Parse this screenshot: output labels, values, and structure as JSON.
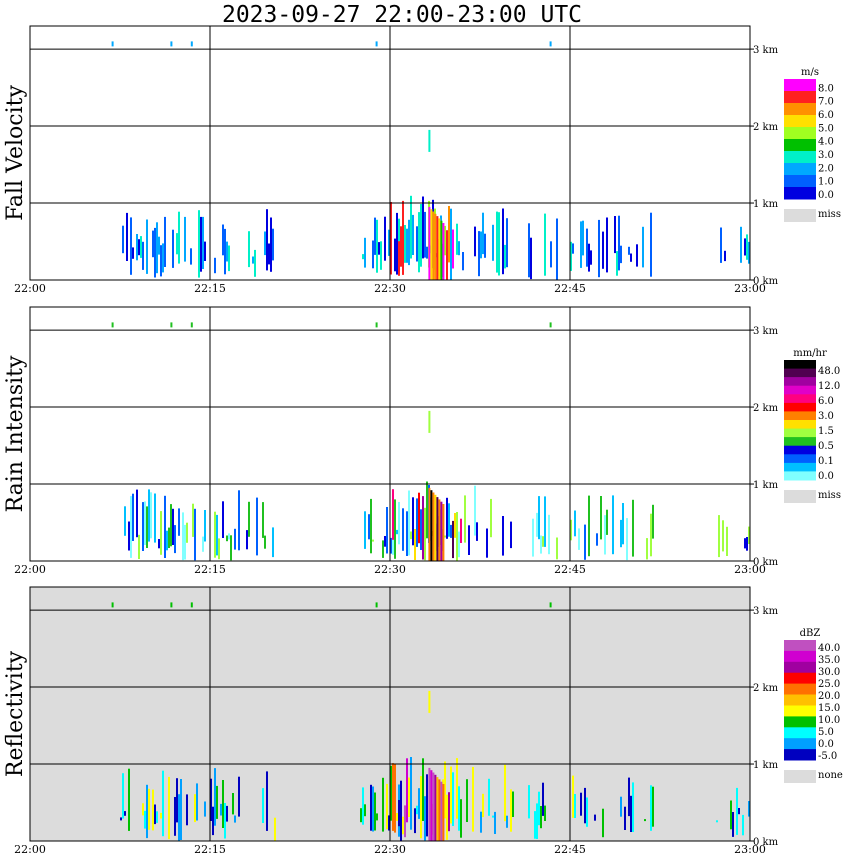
{
  "title": "2023-09-27  22:00-23:00 UTC",
  "chart_data": [
    {
      "type": "heatmap",
      "ylabel": "Fall Velocity",
      "x_ticks": [
        "22:00",
        "22:15",
        "22:30",
        "22:45",
        "23:00"
      ],
      "x_range_minutes": [
        0,
        60
      ],
      "y_ticks": [
        "0 km",
        "1 km",
        "2 km",
        "3 km"
      ],
      "y_range_km": [
        0,
        3.3
      ],
      "grid": true,
      "background": "white",
      "colorbar": {
        "unit": "m/s",
        "labels": [
          "8.0",
          "7.0",
          "6.0",
          "5.0",
          "4.0",
          "3.0",
          "2.0",
          "1.0",
          "0.0"
        ],
        "colors": [
          "#ff00ff",
          "#ff2020",
          "#ff9000",
          "#ffe000",
          "#a0ff20",
          "#00c000",
          "#00f0c8",
          "#00a8ff",
          "#0060ff",
          "#0000e0"
        ],
        "missing_label": "miss",
        "missing_color": "#dcdcdc"
      }
    },
    {
      "type": "heatmap",
      "ylabel": "Rain Intensity",
      "x_ticks": [
        "22:00",
        "22:15",
        "22:30",
        "22:45",
        "23:00"
      ],
      "x_range_minutes": [
        0,
        60
      ],
      "y_ticks": [
        "0 km",
        "1 km",
        "2 km",
        "3 km"
      ],
      "y_range_km": [
        0,
        3.3
      ],
      "grid": true,
      "background": "white",
      "colorbar": {
        "unit": "mm/hr",
        "labels": [
          "48.0",
          "12.0",
          "6.0",
          "3.0",
          "1.5",
          "0.5",
          "0.1",
          "0.0"
        ],
        "colors": [
          "#000000",
          "#500050",
          "#a000a0",
          "#e000c8",
          "#ff0080",
          "#ff0000",
          "#ff8000",
          "#ffe000",
          "#a0ff40",
          "#20c020",
          "#0000e0",
          "#0060ff",
          "#00c0ff",
          "#80ffff"
        ],
        "missing_label": "miss",
        "missing_color": "#dcdcdc"
      }
    },
    {
      "type": "heatmap",
      "ylabel": "Reflectivity",
      "x_ticks": [
        "22:00",
        "22:15",
        "22:30",
        "22:45",
        "23:00"
      ],
      "x_range_minutes": [
        0,
        60
      ],
      "y_ticks": [
        "0 km",
        "1 km",
        "2 km",
        "3 km"
      ],
      "y_range_km": [
        0,
        3.3
      ],
      "grid": true,
      "background": "#dcdcdc",
      "colorbar": {
        "unit": "dBZ",
        "labels": [
          "40.0",
          "35.0",
          "30.0",
          "25.0",
          "20.0",
          "15.0",
          "10.0",
          "5.0",
          "0.0",
          "-5.0"
        ],
        "colors": [
          "#c050c0",
          "#d000d0",
          "#a000a0",
          "#ff0000",
          "#ff7000",
          "#ffc000",
          "#ffff00",
          "#00c000",
          "#00ffff",
          "#00a0ff",
          "#0000c0"
        ],
        "missing_label": "none",
        "missing_color": "#dcdcdc"
      }
    }
  ]
}
